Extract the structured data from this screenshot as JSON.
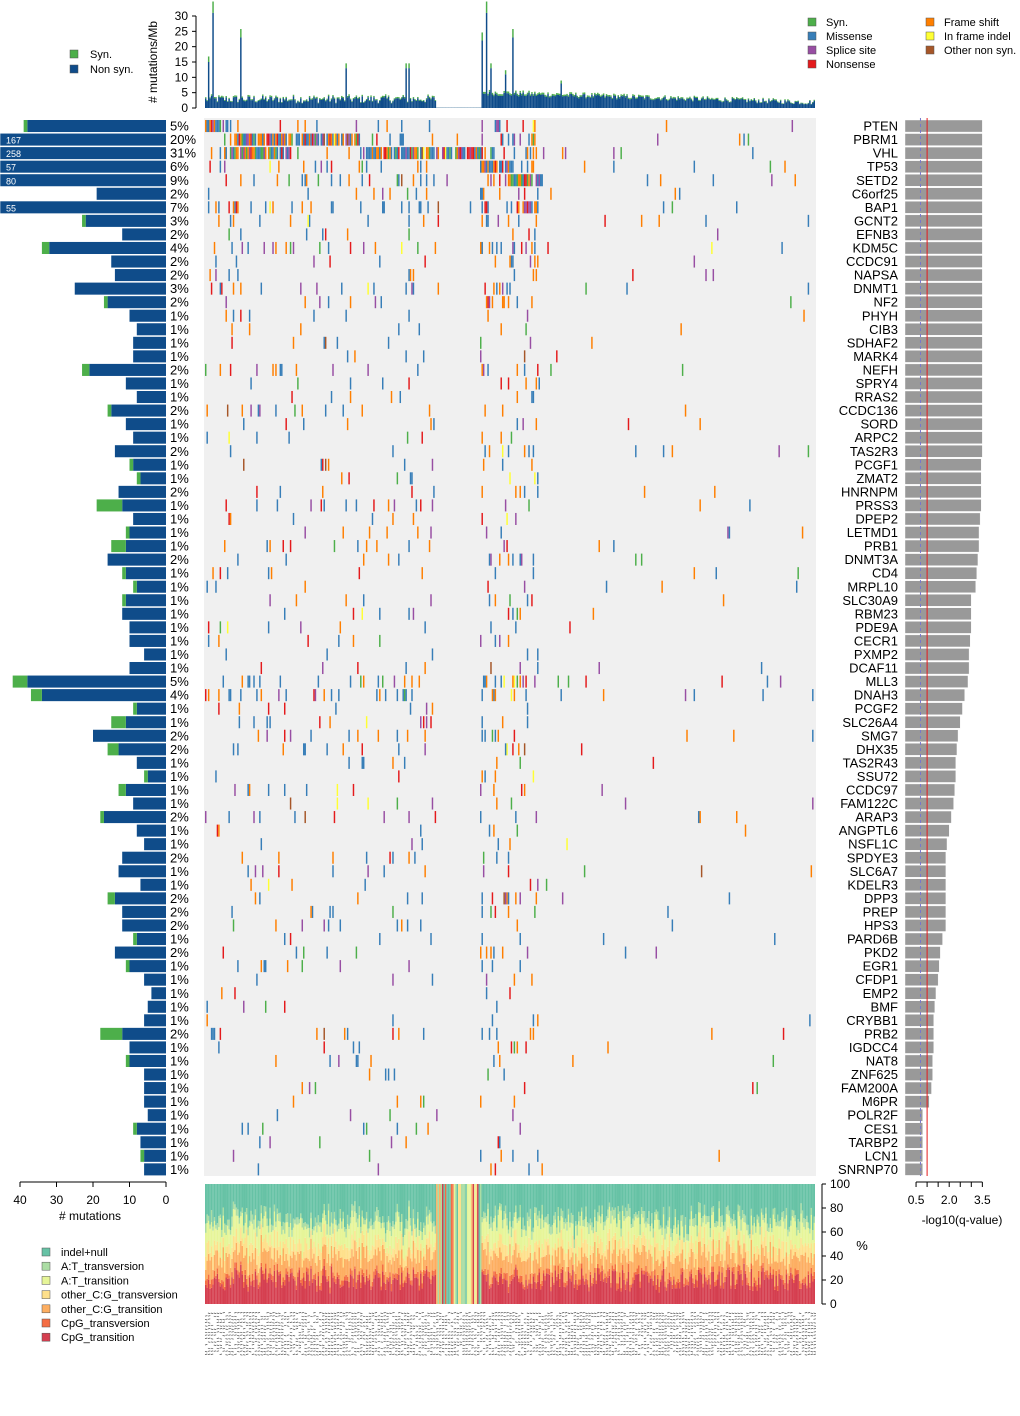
{
  "chart_data": [
    {
      "type": "bar",
      "panel": "tmb",
      "ylabel": "# mutations/Mb",
      "ylim": [
        0,
        30
      ],
      "yticks": [
        0,
        5,
        10,
        15,
        20,
        25,
        30
      ],
      "legend": {
        "items": [
          {
            "name": "Syn.",
            "color": "#4DAF4A"
          },
          {
            "name": "Non syn.",
            "color": "#0F4C8A"
          }
        ]
      },
      "n_samples": 417,
      "peaks": [
        {
          "sample": 5,
          "value": 31
        },
        {
          "sample": 2,
          "value": 15
        },
        {
          "sample": 24,
          "value": 23
        },
        {
          "sample": 96,
          "value": 13
        },
        {
          "sample": 137,
          "value": 13
        },
        {
          "sample": 139,
          "value": 13
        },
        {
          "sample": 195,
          "value": 13
        },
        {
          "sample": 205,
          "value": 11
        },
        {
          "sample": 189,
          "value": 22
        },
        {
          "sample": 192,
          "value": 31
        },
        {
          "sample": 210,
          "value": 23
        },
        {
          "sample": 243,
          "value": 8
        }
      ]
    },
    {
      "type": "heatmap",
      "panel": "oncoprint",
      "legend": [
        {
          "name": "Syn.",
          "color": "#4DAF4A"
        },
        {
          "name": "Missense",
          "color": "#377EB8"
        },
        {
          "name": "Splice site",
          "color": "#984EA3"
        },
        {
          "name": "Nonsense",
          "color": "#E41A1C"
        },
        {
          "name": "Frame shift",
          "color": "#FF7F00"
        },
        {
          "name": "In frame indel",
          "color": "#FFFF33"
        },
        {
          "name": "Other non syn.",
          "color": "#A65628"
        }
      ],
      "genes": [
        {
          "gene": "PTEN",
          "pct": "5%",
          "nonsyn": 38,
          "syn": 1,
          "q": 3.5
        },
        {
          "gene": "PBRM1",
          "pct": "20%",
          "nonsyn": 167,
          "syn": 0,
          "q": 3.5,
          "label": "167"
        },
        {
          "gene": "VHL",
          "pct": "31%",
          "nonsyn": 258,
          "syn": 0,
          "q": 3.5,
          "label": "258"
        },
        {
          "gene": "TP53",
          "pct": "6%",
          "nonsyn": 57,
          "syn": 0,
          "q": 3.5,
          "label": "57"
        },
        {
          "gene": "SETD2",
          "pct": "9%",
          "nonsyn": 80,
          "syn": 0,
          "q": 3.5,
          "label": "80"
        },
        {
          "gene": "C6orf25",
          "pct": "2%",
          "nonsyn": 19,
          "syn": 0,
          "q": 3.5
        },
        {
          "gene": "BAP1",
          "pct": "7%",
          "nonsyn": 55,
          "syn": 0,
          "q": 3.5,
          "label": "55"
        },
        {
          "gene": "GCNT2",
          "pct": "3%",
          "nonsyn": 22,
          "syn": 1,
          "q": 3.5
        },
        {
          "gene": "EFNB3",
          "pct": "2%",
          "nonsyn": 12,
          "syn": 0,
          "q": 3.5
        },
        {
          "gene": "KDM5C",
          "pct": "4%",
          "nonsyn": 32,
          "syn": 2,
          "q": 3.5
        },
        {
          "gene": "CCDC91",
          "pct": "2%",
          "nonsyn": 15,
          "syn": 0,
          "q": 3.5
        },
        {
          "gene": "NAPSA",
          "pct": "2%",
          "nonsyn": 14,
          "syn": 0,
          "q": 3.5
        },
        {
          "gene": "DNMT1",
          "pct": "3%",
          "nonsyn": 25,
          "syn": 0,
          "q": 3.5
        },
        {
          "gene": "NF2",
          "pct": "2%",
          "nonsyn": 16,
          "syn": 1,
          "q": 3.5
        },
        {
          "gene": "PHYH",
          "pct": "1%",
          "nonsyn": 10,
          "syn": 0,
          "q": 3.5
        },
        {
          "gene": "CIB3",
          "pct": "1%",
          "nonsyn": 8,
          "syn": 0,
          "q": 3.5
        },
        {
          "gene": "SDHAF2",
          "pct": "1%",
          "nonsyn": 9,
          "syn": 0,
          "q": 3.5
        },
        {
          "gene": "MARK4",
          "pct": "1%",
          "nonsyn": 9,
          "syn": 0,
          "q": 3.5
        },
        {
          "gene": "NEFH",
          "pct": "2%",
          "nonsyn": 21,
          "syn": 2,
          "q": 3.5
        },
        {
          "gene": "SPRY4",
          "pct": "1%",
          "nonsyn": 11,
          "syn": 0,
          "q": 3.5
        },
        {
          "gene": "RRAS2",
          "pct": "1%",
          "nonsyn": 8,
          "syn": 0,
          "q": 3.5
        },
        {
          "gene": "CCDC136",
          "pct": "2%",
          "nonsyn": 15,
          "syn": 1,
          "q": 3.5
        },
        {
          "gene": "SORD",
          "pct": "1%",
          "nonsyn": 11,
          "syn": 0,
          "q": 3.5
        },
        {
          "gene": "ARPC2",
          "pct": "1%",
          "nonsyn": 9,
          "syn": 0,
          "q": 3.5
        },
        {
          "gene": "TAS2R3",
          "pct": "2%",
          "nonsyn": 14,
          "syn": 0,
          "q": 3.5
        },
        {
          "gene": "PCGF1",
          "pct": "1%",
          "nonsyn": 9,
          "syn": 1,
          "q": 3.45
        },
        {
          "gene": "ZMAT2",
          "pct": "1%",
          "nonsyn": 7,
          "syn": 1,
          "q": 3.45
        },
        {
          "gene": "HNRNPM",
          "pct": "2%",
          "nonsyn": 13,
          "syn": 0,
          "q": 3.45
        },
        {
          "gene": "PRSS3",
          "pct": "1%",
          "nonsyn": 12,
          "syn": 7,
          "q": 3.45
        },
        {
          "gene": "DPEP2",
          "pct": "1%",
          "nonsyn": 9,
          "syn": 0,
          "q": 3.4
        },
        {
          "gene": "LETMD1",
          "pct": "1%",
          "nonsyn": 10,
          "syn": 1,
          "q": 3.35
        },
        {
          "gene": "PRB1",
          "pct": "1%",
          "nonsyn": 11,
          "syn": 4,
          "q": 3.35
        },
        {
          "gene": "DNMT3A",
          "pct": "2%",
          "nonsyn": 16,
          "syn": 0,
          "q": 3.3
        },
        {
          "gene": "CD4",
          "pct": "1%",
          "nonsyn": 11,
          "syn": 1,
          "q": 3.25
        },
        {
          "gene": "MRPL10",
          "pct": "1%",
          "nonsyn": 8,
          "syn": 1,
          "q": 3.2
        },
        {
          "gene": "SLC30A9",
          "pct": "1%",
          "nonsyn": 11,
          "syn": 1,
          "q": 3.0
        },
        {
          "gene": "RBM23",
          "pct": "1%",
          "nonsyn": 12,
          "syn": 0,
          "q": 3.0
        },
        {
          "gene": "PDE9A",
          "pct": "1%",
          "nonsyn": 10,
          "syn": 0,
          "q": 3.0
        },
        {
          "gene": "CECR1",
          "pct": "1%",
          "nonsyn": 10,
          "syn": 0,
          "q": 2.95
        },
        {
          "gene": "PXMP2",
          "pct": "1%",
          "nonsyn": 6,
          "syn": 0,
          "q": 2.9
        },
        {
          "gene": "DCAF11",
          "pct": "1%",
          "nonsyn": 10,
          "syn": 0,
          "q": 2.9
        },
        {
          "gene": "MLL3",
          "pct": "5%",
          "nonsyn": 38,
          "syn": 4,
          "q": 2.85
        },
        {
          "gene": "DNAH3",
          "pct": "4%",
          "nonsyn": 34,
          "syn": 3,
          "q": 2.7
        },
        {
          "gene": "PCGF2",
          "pct": "1%",
          "nonsyn": 8,
          "syn": 1,
          "q": 2.6
        },
        {
          "gene": "SLC26A4",
          "pct": "1%",
          "nonsyn": 11,
          "syn": 4,
          "q": 2.5
        },
        {
          "gene": "SMG7",
          "pct": "2%",
          "nonsyn": 20,
          "syn": 0,
          "q": 2.4
        },
        {
          "gene": "DHX35",
          "pct": "2%",
          "nonsyn": 13,
          "syn": 3,
          "q": 2.35
        },
        {
          "gene": "TAS2R43",
          "pct": "1%",
          "nonsyn": 8,
          "syn": 0,
          "q": 2.3
        },
        {
          "gene": "SSU72",
          "pct": "1%",
          "nonsyn": 5,
          "syn": 1,
          "q": 2.3
        },
        {
          "gene": "CCDC97",
          "pct": "1%",
          "nonsyn": 11,
          "syn": 2,
          "q": 2.25
        },
        {
          "gene": "FAM122C",
          "pct": "1%",
          "nonsyn": 9,
          "syn": 0,
          "q": 2.2
        },
        {
          "gene": "ARAP3",
          "pct": "2%",
          "nonsyn": 17,
          "syn": 1,
          "q": 2.1
        },
        {
          "gene": "ANGPTL6",
          "pct": "1%",
          "nonsyn": 8,
          "syn": 0,
          "q": 2.0
        },
        {
          "gene": "NSFL1C",
          "pct": "1%",
          "nonsyn": 6,
          "syn": 0,
          "q": 1.9
        },
        {
          "gene": "SPDYE3",
          "pct": "2%",
          "nonsyn": 12,
          "syn": 0,
          "q": 1.85
        },
        {
          "gene": "SLC6A7",
          "pct": "1%",
          "nonsyn": 13,
          "syn": 0,
          "q": 1.85
        },
        {
          "gene": "KDELR3",
          "pct": "1%",
          "nonsyn": 7,
          "syn": 0,
          "q": 1.85
        },
        {
          "gene": "DPP3",
          "pct": "2%",
          "nonsyn": 14,
          "syn": 2,
          "q": 1.85
        },
        {
          "gene": "PREP",
          "pct": "2%",
          "nonsyn": 12,
          "syn": 0,
          "q": 1.85
        },
        {
          "gene": "HPS3",
          "pct": "2%",
          "nonsyn": 12,
          "syn": 0,
          "q": 1.85
        },
        {
          "gene": "PARD6B",
          "pct": "1%",
          "nonsyn": 8,
          "syn": 1,
          "q": 1.7
        },
        {
          "gene": "PKD2",
          "pct": "2%",
          "nonsyn": 14,
          "syn": 0,
          "q": 1.6
        },
        {
          "gene": "EGR1",
          "pct": "1%",
          "nonsyn": 10,
          "syn": 1,
          "q": 1.55
        },
        {
          "gene": "CFDP1",
          "pct": "1%",
          "nonsyn": 6,
          "syn": 0,
          "q": 1.5
        },
        {
          "gene": "EMP2",
          "pct": "1%",
          "nonsyn": 4,
          "syn": 0,
          "q": 1.4
        },
        {
          "gene": "BMF",
          "pct": "1%",
          "nonsyn": 5,
          "syn": 0,
          "q": 1.35
        },
        {
          "gene": "CRYBB1",
          "pct": "1%",
          "nonsyn": 6,
          "syn": 0,
          "q": 1.3
        },
        {
          "gene": "PRB2",
          "pct": "2%",
          "nonsyn": 12,
          "syn": 6,
          "q": 1.3
        },
        {
          "gene": "IGDCC4",
          "pct": "1%",
          "nonsyn": 10,
          "syn": 0,
          "q": 1.3
        },
        {
          "gene": "NAT8",
          "pct": "1%",
          "nonsyn": 10,
          "syn": 1,
          "q": 1.25
        },
        {
          "gene": "ZNF625",
          "pct": "1%",
          "nonsyn": 6,
          "syn": 0,
          "q": 1.25
        },
        {
          "gene": "FAM200A",
          "pct": "1%",
          "nonsyn": 6,
          "syn": 0,
          "q": 1.2
        },
        {
          "gene": "M6PR",
          "pct": "1%",
          "nonsyn": 6,
          "syn": 0,
          "q": 1.1
        },
        {
          "gene": "POLR2F",
          "pct": "1%",
          "nonsyn": 5,
          "syn": 0,
          "q": 0.8
        },
        {
          "gene": "CES1",
          "pct": "1%",
          "nonsyn": 8,
          "syn": 1,
          "q": 0.8
        },
        {
          "gene": "TARBP2",
          "pct": "1%",
          "nonsyn": 7,
          "syn": 0,
          "q": 0.8
        },
        {
          "gene": "LCN1",
          "pct": "1%",
          "nonsyn": 6,
          "syn": 1,
          "q": 0.8
        },
        {
          "gene": "SNRNP70",
          "pct": "1%",
          "nonsyn": 6,
          "syn": 0,
          "q": 0.8
        }
      ]
    },
    {
      "type": "bar",
      "panel": "gene-counts",
      "xlabel": "# mutations",
      "xticks": [
        40,
        30,
        20,
        10,
        0
      ],
      "xlim": [
        0,
        40
      ]
    },
    {
      "type": "bar",
      "panel": "q-values",
      "xlabel": "-log10(q-value)",
      "xticks": [
        0.5,
        1.0,
        1.5,
        2.0,
        2.5,
        3.0,
        3.5
      ],
      "xtick_labels": [
        "0.5",
        "",
        "",
        "2.0",
        "",
        "",
        "3.5"
      ],
      "threshold_red": 1.0,
      "threshold_dashed": 0.7
    },
    {
      "type": "area",
      "panel": "spectrum",
      "ylabel": "%",
      "ylim": [
        0,
        100
      ],
      "yticks": [
        0,
        20,
        40,
        60,
        80,
        100
      ],
      "legend": [
        {
          "name": "indel+null",
          "color": "#66C2A5"
        },
        {
          "name": "A:T_transversion",
          "color": "#ABDDA4"
        },
        {
          "name": "A:T_transition",
          "color": "#E6F598"
        },
        {
          "name": "other_C:G_transversion",
          "color": "#FEE08B"
        },
        {
          "name": "other_C:G_transition",
          "color": "#FDAE61"
        },
        {
          "name": "CpG_transversion",
          "color": "#F46D43"
        },
        {
          "name": "CpG_transition",
          "color": "#D53E4F"
        }
      ],
      "typical_fractions": [
        0.28,
        0.06,
        0.16,
        0.1,
        0.16,
        0.04,
        0.2
      ]
    }
  ]
}
